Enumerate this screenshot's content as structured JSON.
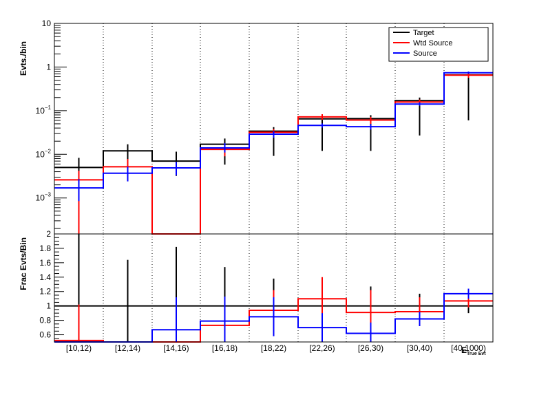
{
  "chart_data": [
    {
      "type": "line",
      "title": "",
      "ylabel": "Evts./bin",
      "yscale": "log",
      "ylim": [
        0.00015,
        10
      ],
      "grid": "vertical dotted at bin edges",
      "legend_position": "top-right",
      "categories": [
        "[10,12)",
        "[12,14)",
        "[14,16)",
        "[16,18)",
        "[18,22)",
        "[22,26)",
        "[26,30)",
        "[30,40)",
        "[40,1000)"
      ],
      "y_ticks": [
        {
          "v": 0.001,
          "base": "10",
          "exp": "−3"
        },
        {
          "v": 0.01,
          "base": "10",
          "exp": "−2"
        },
        {
          "v": 0.1,
          "base": "10",
          "exp": "−1"
        },
        {
          "v": 1,
          "base": "1",
          "exp": ""
        },
        {
          "v": 10,
          "base": "10",
          "exp": ""
        }
      ],
      "series": [
        {
          "name": "Target",
          "color": "#000000",
          "values": [
            0.005,
            0.012,
            0.007,
            0.017,
            0.034,
            0.065,
            0.066,
            0.17,
            0.66
          ],
          "err_lo": [
            0.0022,
            0.0038,
            0.0032,
            0.0058,
            0.0092,
            0.012,
            0.012,
            0.027,
            0.06
          ],
          "err_hi": [
            0.0083,
            0.017,
            0.0115,
            0.023,
            0.042,
            0.078,
            0.079,
            0.2,
            0.74
          ]
        },
        {
          "name": "Wtd Source",
          "color": "#ff0000",
          "values": [
            0.0026,
            0.0052,
            0.00015,
            0.013,
            0.032,
            0.072,
            0.061,
            0.158,
            0.65
          ],
          "err_lo": [
            0.00015,
            0.0032,
            0.00015,
            0.009,
            0.026,
            0.062,
            0.05,
            0.135,
            0.57
          ],
          "err_hi": [
            0.0042,
            0.0078,
            0.00015,
            0.017,
            0.038,
            0.083,
            0.072,
            0.18,
            0.72
          ]
        },
        {
          "name": "Source",
          "color": "#0000ff",
          "values": [
            0.0017,
            0.0037,
            0.0049,
            0.014,
            0.029,
            0.046,
            0.043,
            0.142,
            0.74
          ],
          "err_lo": [
            0.00085,
            0.0024,
            0.0033,
            0.011,
            0.024,
            0.041,
            0.037,
            0.13,
            0.7
          ],
          "err_hi": [
            0.0027,
            0.0052,
            0.0067,
            0.018,
            0.034,
            0.051,
            0.049,
            0.155,
            0.79
          ]
        }
      ]
    },
    {
      "type": "line",
      "title": "",
      "ylabel": "Frac Evts/Bin",
      "xlabel": "E",
      "xlabel_subscript": "True Evt",
      "yscale": "linear",
      "ylim": [
        0.5,
        2
      ],
      "y_ticks": [
        {
          "v": 0.6,
          "label": "0.6"
        },
        {
          "v": 0.8,
          "label": "0.8"
        },
        {
          "v": 1,
          "label": "1"
        },
        {
          "v": 1.2,
          "label": "1.2"
        },
        {
          "v": 1.4,
          "label": "1.4"
        },
        {
          "v": 1.6,
          "label": "1.6"
        },
        {
          "v": 1.8,
          "label": "1.8"
        },
        {
          "v": 2,
          "label": "2"
        }
      ],
      "categories": [
        "[10,12)",
        "[12,14)",
        "[14,16)",
        "[16,18)",
        "[18,22)",
        "[22,26)",
        "[26,30)",
        "[30,40)",
        "[40,1000)"
      ],
      "series": [
        {
          "name": "Target",
          "color": "#000000",
          "values": [
            1,
            1,
            1,
            1,
            1,
            1,
            1,
            1,
            1
          ],
          "err_lo": [
            0.5,
            0.5,
            0.5,
            0.5,
            0.62,
            0.82,
            0.73,
            0.83,
            0.9
          ],
          "err_hi": [
            2,
            1.64,
            1.82,
            1.54,
            1.38,
            1.18,
            1.27,
            1.17,
            1.1
          ]
        },
        {
          "name": "Wtd Source",
          "color": "#ff0000",
          "values": [
            0.52,
            0.5,
            0.5,
            0.73,
            0.94,
            1.1,
            0.91,
            0.92,
            1.07
          ],
          "err_lo": [
            0.5,
            0.5,
            0.5,
            0.5,
            0.66,
            0.8,
            0.6,
            0.72,
            0.98
          ],
          "err_hi": [
            1.02,
            0.5,
            0.5,
            1.02,
            1.22,
            1.4,
            1.22,
            1.12,
            1.16
          ]
        },
        {
          "name": "Source",
          "color": "#0000ff",
          "values": [
            0.5,
            0.5,
            0.67,
            0.79,
            0.85,
            0.7,
            0.62,
            0.82,
            1.17
          ],
          "err_lo": [
            0.5,
            0.5,
            0.5,
            0.5,
            0.58,
            0.5,
            0.5,
            0.72,
            1.1
          ],
          "err_hi": [
            0.5,
            0.5,
            1.12,
            1.13,
            1.12,
            0.9,
            0.77,
            0.92,
            1.24
          ]
        }
      ]
    }
  ]
}
